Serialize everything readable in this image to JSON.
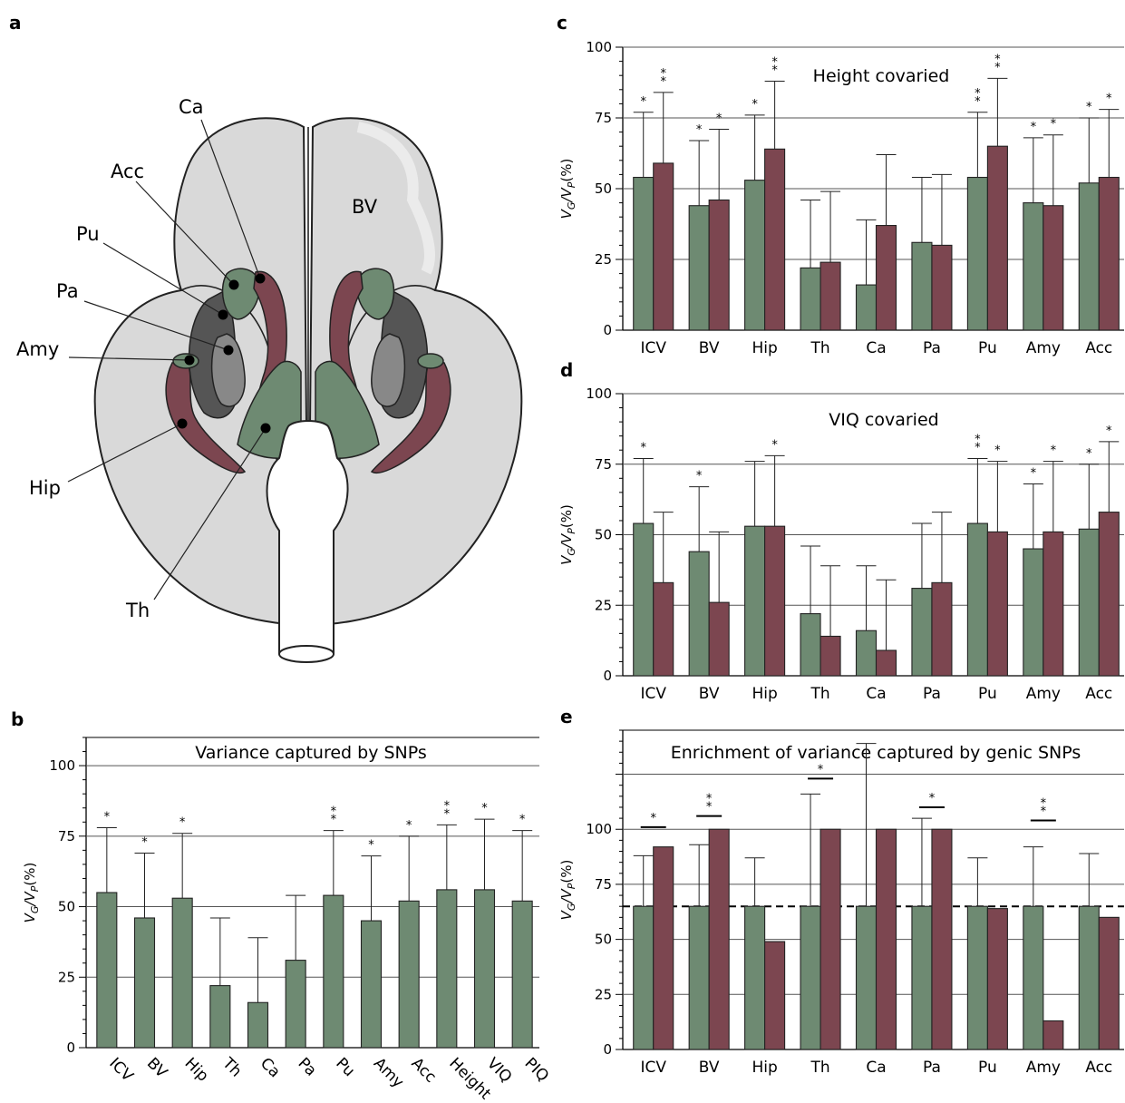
{
  "colors": {
    "green": "#6e8a72",
    "red": "#7c4650",
    "grid": "#555555",
    "axis": "#000000"
  },
  "panel_a": {
    "letter": "a",
    "labels": [
      "Ca",
      "Acc",
      "Pu",
      "Pa",
      "Amy",
      "Hip",
      "Th",
      "BV"
    ]
  },
  "chart_data": [
    {
      "panel": "b",
      "type": "bar",
      "title": "Variance captured by SNPs",
      "ylabel": "VG/VP(%)",
      "ylim": [
        0,
        110
      ],
      "yticks": [
        "0",
        "25",
        "50",
        "75",
        "100"
      ],
      "grid": true,
      "categories": [
        "ICV",
        "BV",
        "Hip",
        "Th",
        "Ca",
        "Pa",
        "Pu",
        "Amy",
        "Acc",
        "Height",
        "VIQ",
        "PIQ"
      ],
      "series": [
        {
          "values": [
            55,
            46,
            53,
            22,
            16,
            31,
            54,
            45,
            52,
            56,
            56,
            52
          ],
          "error_upper": [
            78,
            69,
            76,
            46,
            39,
            54,
            77,
            68,
            75,
            79,
            81,
            77
          ],
          "stars": [
            "*",
            "*",
            "*",
            "",
            "",
            "",
            "**",
            "*",
            "*",
            "**",
            "*",
            "*"
          ]
        }
      ]
    },
    {
      "panel": "c",
      "type": "bar",
      "title": "Height covaried",
      "ylabel": "VG/VP(%)",
      "ylim": [
        0,
        100
      ],
      "yticks": [
        "0",
        "25",
        "50",
        "75",
        "100"
      ],
      "grid": true,
      "categories": [
        "ICV",
        "BV",
        "Hip",
        "Th",
        "Ca",
        "Pa",
        "Pu",
        "Amy",
        "Acc"
      ],
      "series": [
        {
          "values": [
            54,
            44,
            53,
            22,
            16,
            31,
            54,
            45,
            52
          ],
          "error_upper": [
            77,
            67,
            76,
            46,
            39,
            54,
            77,
            68,
            75
          ],
          "stars": [
            "*",
            "*",
            "*",
            "",
            "",
            "",
            "**",
            "*",
            "*"
          ]
        },
        {
          "values": [
            59,
            46,
            64,
            24,
            37,
            30,
            65,
            44,
            54
          ],
          "error_upper": [
            84,
            71,
            88,
            49,
            62,
            55,
            89,
            69,
            78
          ],
          "stars": [
            "**",
            "*",
            "**",
            "",
            "",
            "",
            "**",
            "*",
            "*"
          ]
        }
      ]
    },
    {
      "panel": "d",
      "type": "bar",
      "title": "VIQ covaried",
      "ylabel": "VG/VP(%)",
      "ylim": [
        0,
        100
      ],
      "yticks": [
        "0",
        "25",
        "50",
        "75",
        "100"
      ],
      "grid": true,
      "categories": [
        "ICV",
        "BV",
        "Hip",
        "Th",
        "Ca",
        "Pa",
        "Pu",
        "Amy",
        "Acc"
      ],
      "series": [
        {
          "values": [
            54,
            44,
            53,
            22,
            16,
            31,
            54,
            45,
            52
          ],
          "error_upper": [
            77,
            67,
            76,
            46,
            39,
            54,
            77,
            68,
            75
          ],
          "stars": [
            "*",
            "*",
            "",
            "",
            "",
            "",
            "**",
            "*",
            "*"
          ]
        },
        {
          "values": [
            33,
            26,
            53,
            14,
            9,
            33,
            51,
            51,
            58
          ],
          "error_upper": [
            58,
            51,
            78,
            39,
            34,
            58,
            76,
            76,
            83
          ],
          "stars": [
            "",
            "",
            "*",
            "",
            "",
            "",
            "*",
            "*",
            "*"
          ]
        }
      ]
    },
    {
      "panel": "e",
      "type": "bar",
      "title": "Enrichment of variance captured by genic SNPs",
      "ylabel": "VG/VP(%)",
      "ylim": [
        0,
        145
      ],
      "yticks": [
        "0",
        "25",
        "50",
        "75",
        "100"
      ],
      "gridlines": [
        25,
        50,
        75,
        100,
        125
      ],
      "reference_line": 65,
      "grid": true,
      "categories": [
        "ICV",
        "BV",
        "Hip",
        "Th",
        "Ca",
        "Pa",
        "Pu",
        "Amy",
        "Acc"
      ],
      "series": [
        {
          "values": [
            65,
            65,
            65,
            65,
            65,
            65,
            65,
            65,
            65
          ],
          "error_upper": [
            88,
            93,
            87,
            116,
            139,
            105,
            87,
            92,
            89
          ]
        },
        {
          "values": [
            92,
            100,
            49,
            100,
            100,
            100,
            64,
            13,
            60
          ]
        }
      ],
      "significance": [
        "*",
        "**",
        "",
        "*",
        "",
        "*",
        "",
        "**",
        ""
      ],
      "significance_bar": [
        101,
        106,
        null,
        123,
        null,
        110,
        null,
        104,
        null
      ]
    }
  ]
}
